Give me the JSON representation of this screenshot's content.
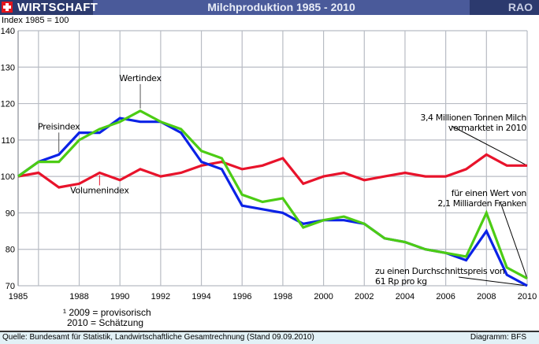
{
  "header": {
    "section": "WIRTSCHAFT",
    "title": "Milchproduktion 1985 - 2010",
    "agency": "RAO",
    "flag_icon": "swiss-flag-icon"
  },
  "footnote": {
    "line1": "¹ 2009 = provisorisch",
    "line2": "2010 = Schätzung"
  },
  "footer": {
    "source": "Quelle: Bundesamt für Statistik, Landwirtschaftliche Gesamtrechnung (Stand 09.09.2010)",
    "credit": "Diagramm: BFS"
  },
  "chart_data": {
    "type": "line",
    "title": "Milchproduktion 1985 - 2010",
    "subtitle": "Index 1985 = 100",
    "xlabel": "",
    "ylabel": "Index 1985 = 100",
    "xlim": [
      1985,
      2010
    ],
    "ylim": [
      70,
      140
    ],
    "grid": true,
    "x": [
      1985,
      1986,
      1987,
      1988,
      1989,
      1990,
      1991,
      1992,
      1993,
      1994,
      1995,
      1996,
      1997,
      1998,
      1999,
      2000,
      2001,
      2002,
      2003,
      2004,
      2005,
      2006,
      2007,
      2008,
      2009,
      2010
    ],
    "x_tick_labels": [
      "1985",
      "1988",
      "1990",
      "1992",
      "1994",
      "1996",
      "1998",
      "2000",
      "2002",
      "2004",
      "2006",
      "2008",
      "2010"
    ],
    "x_tick_values": [
      1985,
      1988,
      1990,
      1992,
      1994,
      1996,
      1998,
      2000,
      2002,
      2004,
      2006,
      2008,
      2010
    ],
    "x_grid_values": [
      1986,
      1988,
      1990,
      1992,
      1994,
      1996,
      1998,
      2000,
      2002,
      2004,
      2006,
      2008,
      2010
    ],
    "y_tick_labels": [
      "70",
      "80",
      "90",
      "100",
      "110",
      "120",
      "130",
      "140"
    ],
    "y_tick_values": [
      70,
      80,
      90,
      100,
      110,
      120,
      130,
      140
    ],
    "series": [
      {
        "name": "Volumenindex",
        "color": "#e8132b",
        "values": [
          100,
          101,
          97,
          98,
          101,
          99,
          102,
          100,
          101,
          103,
          104,
          102,
          103,
          105,
          98,
          100,
          101,
          99,
          100,
          101,
          100,
          100,
          102,
          106,
          103,
          103
        ]
      },
      {
        "name": "Preisindex",
        "color": "#0b22e6",
        "values": [
          100,
          104,
          106,
          112,
          112,
          116,
          115,
          115,
          112,
          104,
          102,
          92,
          91,
          90,
          87,
          88,
          88,
          87,
          83,
          82,
          80,
          79,
          77,
          85,
          73,
          70
        ]
      },
      {
        "name": "Wertindex",
        "color": "#4ccc14",
        "values": [
          100,
          104,
          104,
          110,
          113,
          115,
          118,
          115,
          113,
          107,
          105,
          95,
          93,
          94,
          86,
          88,
          89,
          87,
          83,
          82,
          80,
          79,
          78,
          90,
          75,
          72
        ]
      }
    ],
    "series_labels": [
      {
        "text": "Preisindex",
        "series": "Preisindex",
        "anchor_year": 1987
      },
      {
        "text": "Wertindex",
        "series": "Wertindex",
        "anchor_year": 1991
      },
      {
        "text": "Volumenindex",
        "series": "Volumenindex",
        "anchor_year": 1989
      }
    ],
    "annotations": [
      {
        "lines": [
          "3,4 Millionen Tonnen Milch",
          "vermarktet in 2010"
        ],
        "points_to": "Volumenindex 2010"
      },
      {
        "lines": [
          "für einen Wert von",
          "2,1 Milliarden Franken"
        ],
        "points_to": "Wertindex 2010"
      },
      {
        "lines": [
          "zu einen Durchschnittspreis von",
          "61 Rp pro kg"
        ],
        "points_to": "Preisindex 2010"
      }
    ]
  }
}
